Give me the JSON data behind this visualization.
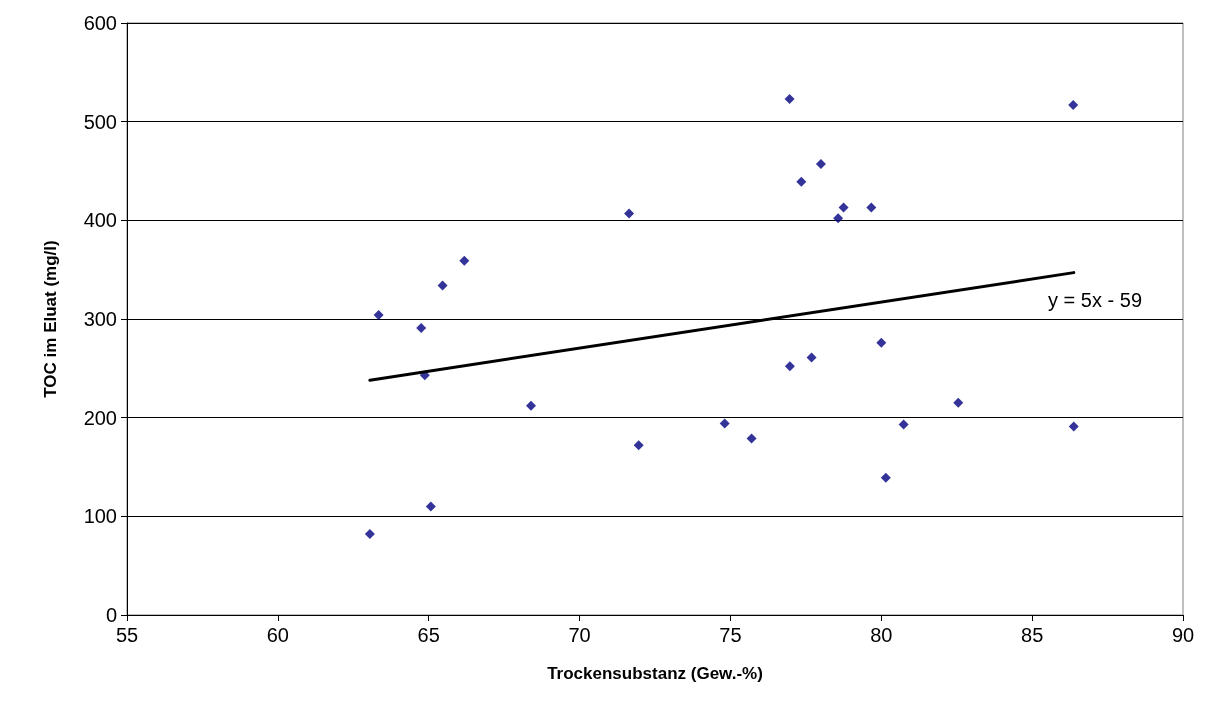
{
  "chart_data": {
    "type": "scatter",
    "xlabel": "Trockensubstanz (Gew.-%)",
    "ylabel": "TOC im Eluat (mg/l)",
    "xlim": [
      55,
      90
    ],
    "xticks": [
      55,
      60,
      65,
      70,
      75,
      80,
      85,
      90
    ],
    "ylim": [
      0,
      600
    ],
    "yticks": [
      0,
      100,
      200,
      300,
      400,
      500,
      600
    ],
    "grid": "y",
    "marker": "diamond",
    "series": [
      {
        "color": "#000080",
        "x": [
          63.05,
          63.34,
          64.75,
          64.87,
          65.07,
          65.46,
          66.18,
          68.39,
          71.64,
          71.96,
          74.81,
          75.7,
          76.96,
          76.97,
          77.35,
          77.69,
          78.0,
          78.57,
          78.75,
          79.67,
          80.0,
          80.15,
          80.74,
          82.55,
          86.36,
          86.38
        ],
        "values": [
          82,
          304,
          291,
          243,
          110,
          334,
          359,
          212,
          407,
          172,
          194,
          179,
          523,
          252,
          439,
          261,
          457,
          402,
          413,
          413,
          276,
          139,
          193,
          215,
          517,
          191
        ]
      },
      {
        "type": "line",
        "color": "#000000",
        "marker": "none",
        "x": [
          63.05,
          86.38
        ],
        "values": [
          238,
          347
        ]
      }
    ],
    "annotations": [
      "y = 5x - 59"
    ]
  }
}
